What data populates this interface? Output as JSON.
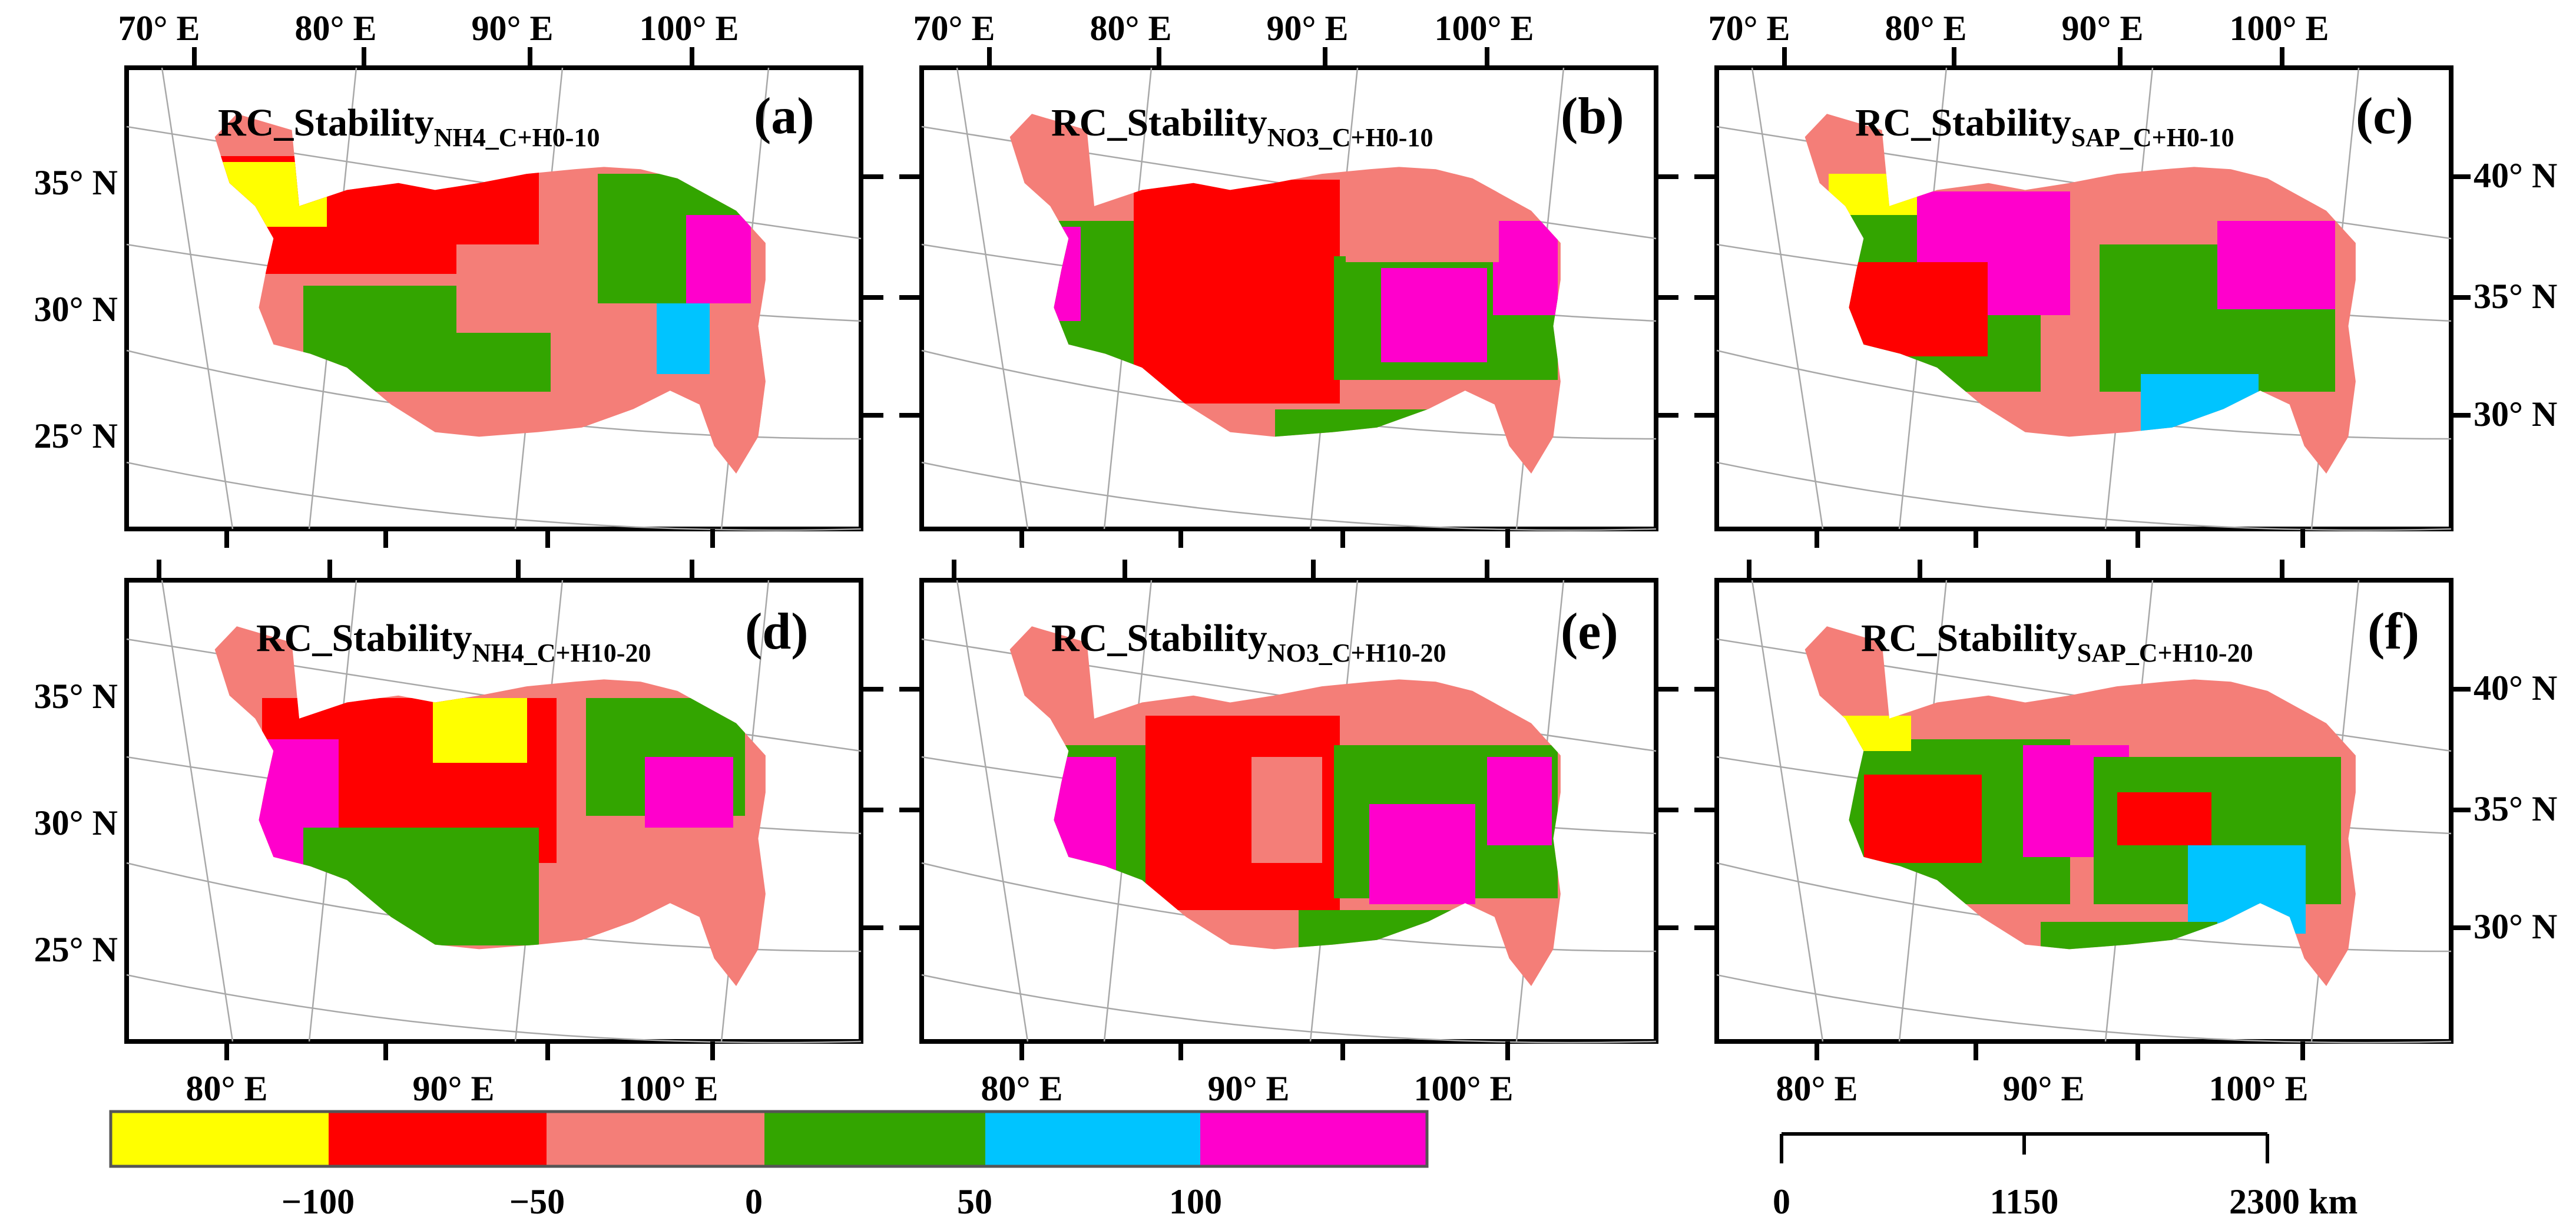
{
  "panels": [
    {
      "letter": "(a)",
      "title_main": "RC_Stability",
      "title_sub": "NH4_C+H0-10"
    },
    {
      "letter": "(b)",
      "title_main": "RC_Stability",
      "title_sub": "NO3_C+H0-10"
    },
    {
      "letter": "(c)",
      "title_main": "RC_Stability",
      "title_sub": "SAP_C+H0-10"
    },
    {
      "letter": "(d)",
      "title_main": "RC_Stability",
      "title_sub": "NH4_C+H10-20"
    },
    {
      "letter": "(e)",
      "title_main": "RC_Stability",
      "title_sub": "NO3_C+H10-20"
    },
    {
      "letter": "(f)",
      "title_main": "RC_Stability",
      "title_sub": "SAP_C+H10-20"
    }
  ],
  "axes": {
    "top_lon_labels": [
      "70° E",
      "80° E",
      "90° E",
      "100° E"
    ],
    "bottom_lon_labels": [
      "80° E",
      "90° E",
      "100° E"
    ],
    "left_lat_labels": [
      "35° N",
      "30° N",
      "25° N"
    ],
    "right_lat_labels": [
      "40° N",
      "35° N",
      "30° N"
    ]
  },
  "legend": {
    "colors": [
      "#ffff00",
      "#ff0000",
      "#f47e78",
      "#33a500",
      "#00c4ff",
      "#ff00cc"
    ],
    "tick_labels": [
      "−100",
      "−50",
      "0",
      "50",
      "100"
    ]
  },
  "scale_bar": {
    "labels": [
      "0",
      "1150",
      "2300 km"
    ]
  }
}
